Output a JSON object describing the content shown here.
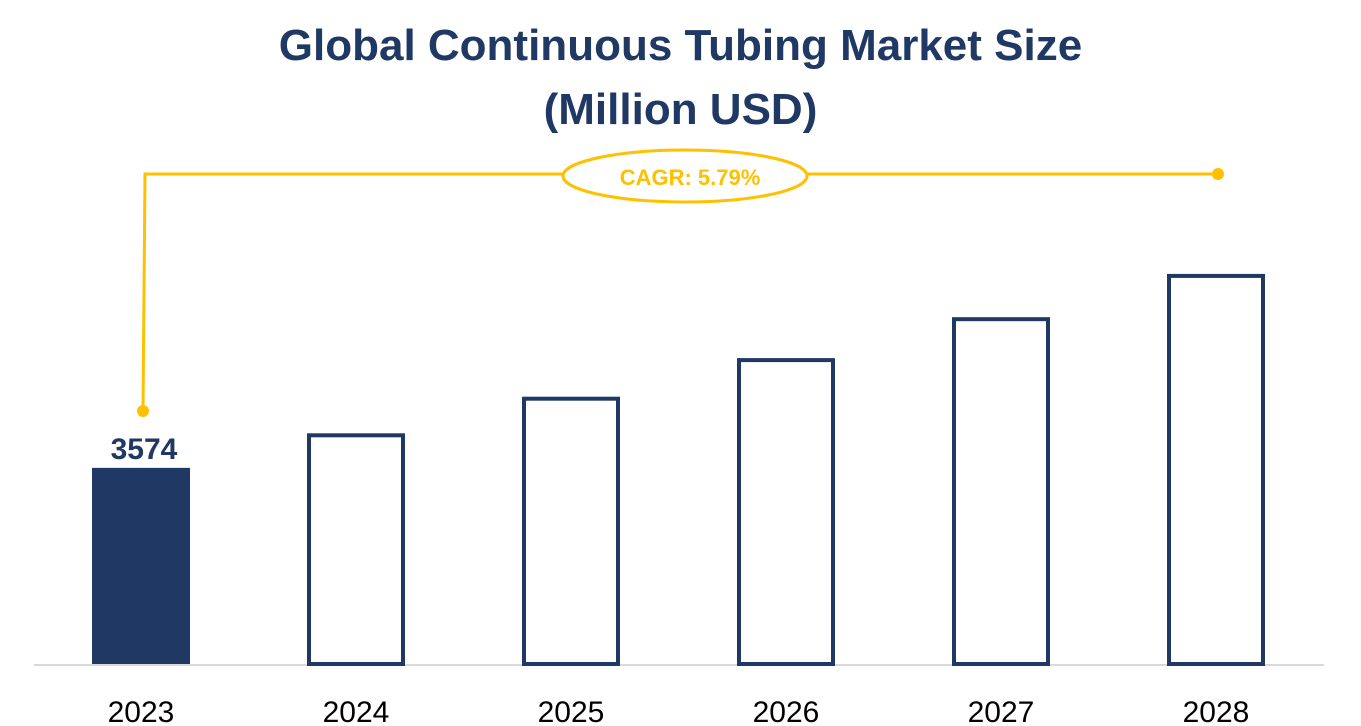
{
  "chart_data": {
    "type": "bar",
    "title": "Global Continuous Tubing Market Size",
    "subtitle": "(Million USD)",
    "categories": [
      "2023",
      "2024",
      "2025",
      "2026",
      "2027",
      "2028"
    ],
    "values": [
      3574,
      3781,
      4000,
      4231,
      4476,
      4735
    ],
    "data_labels": {
      "2023": "3574"
    },
    "annotation": "CAGR: 5.79%",
    "xlabel": "",
    "ylabel": "",
    "ylim": [
      2400,
      5800
    ],
    "grid": false,
    "legend": "none",
    "colors": {
      "bar": "#203864",
      "highlight_fill": "#203864",
      "annotation": "#FFC000",
      "axis": "#D9D9D9"
    }
  }
}
